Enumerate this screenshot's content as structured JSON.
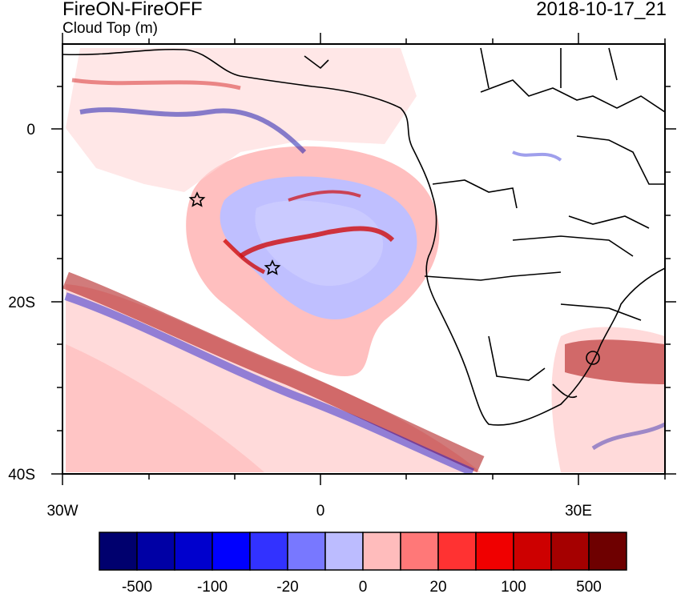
{
  "title": "FireON-FireOFF",
  "subtitle": "Cloud Top (m)",
  "timestamp": "2018-10-17_21",
  "axes": {
    "y_ticks": [
      "0",
      "20S",
      "40S"
    ],
    "x_ticks": [
      "30W",
      "0",
      "30E"
    ]
  },
  "colorbar": {
    "colors": [
      "#00006e",
      "#0000a5",
      "#0000cd",
      "#0000ff",
      "#3232ff",
      "#7878ff",
      "#bcbcff",
      "#ffbcbc",
      "#ff7878",
      "#ff3232",
      "#f00000",
      "#cd0000",
      "#a50000",
      "#6e0000"
    ],
    "labels": [
      "-500",
      "-100",
      "-20",
      "0",
      "20",
      "100",
      "500"
    ]
  },
  "markers": [
    "star",
    "star"
  ],
  "colors": {
    "land_outline": "#000000",
    "frame": "#000000"
  }
}
